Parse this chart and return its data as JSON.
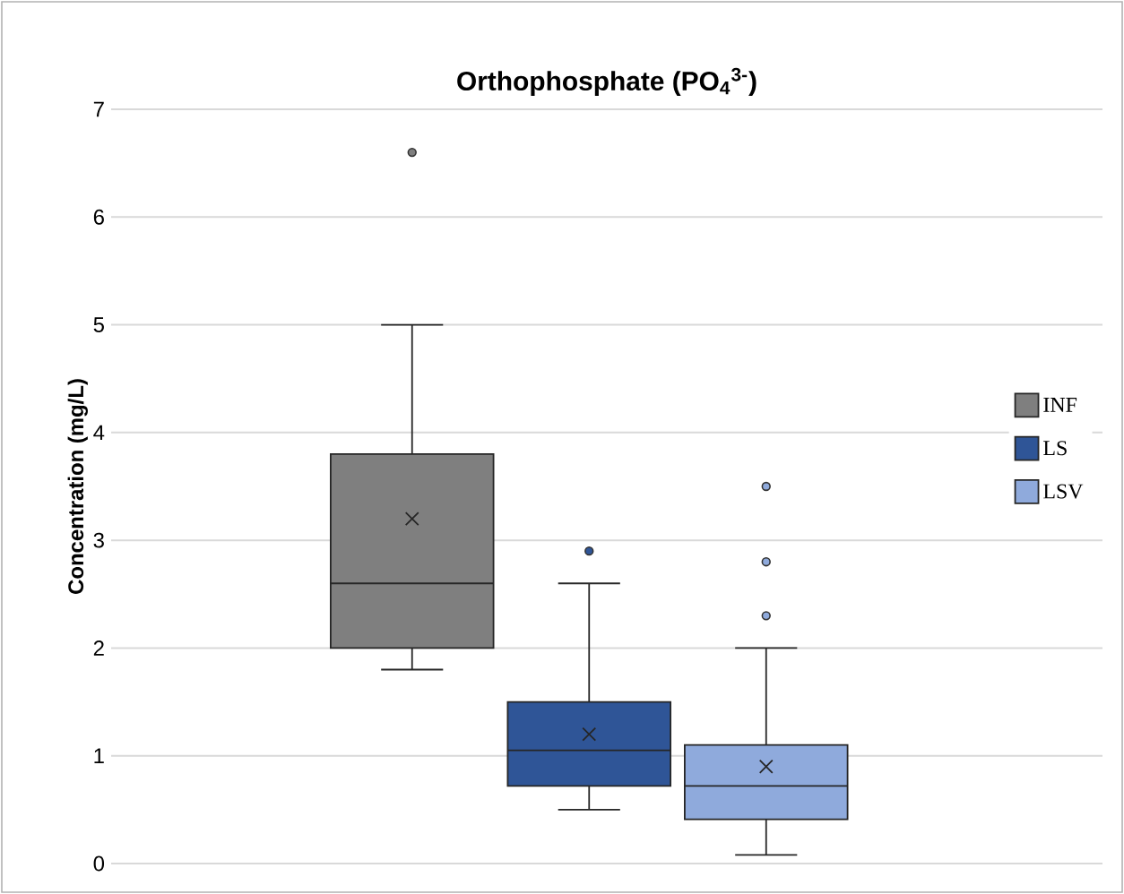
{
  "chart_data": {
    "type": "box",
    "title": "Orthophosphate (PO$_{4}$$^{3-}$)",
    "ylabel": "Concentration (mg/L)",
    "categories": [
      null
    ],
    "series": [
      {
        "name": "INF",
        "color": "#7f7f7f",
        "boxes": [
          {
            "low": 1.8,
            "q1": 2.0,
            "median": 2.6,
            "q3": 3.8,
            "high": 5.0,
            "mean": 3.2,
            "outliers": [
              6.6
            ]
          }
        ]
      },
      {
        "name": "LS",
        "color": "#2f5597",
        "boxes": [
          {
            "low": 0.5,
            "q1": 0.72,
            "median": 1.05,
            "q3": 1.5,
            "high": 2.6,
            "mean": 1.2,
            "outliers": [
              2.9
            ]
          }
        ]
      },
      {
        "name": "LSV",
        "color": "#8faadc",
        "boxes": [
          {
            "low": 0.08,
            "q1": 0.41,
            "median": 0.72,
            "q3": 1.1,
            "high": 2.0,
            "mean": 0.9,
            "outliers": [
              3.5,
              2.8,
              2.3
            ]
          }
        ]
      }
    ],
    "ylim": [
      0,
      7
    ],
    "yticks": [
      0,
      1,
      2,
      3,
      4,
      5,
      6,
      7
    ],
    "grid": "y",
    "legend": "right"
  }
}
